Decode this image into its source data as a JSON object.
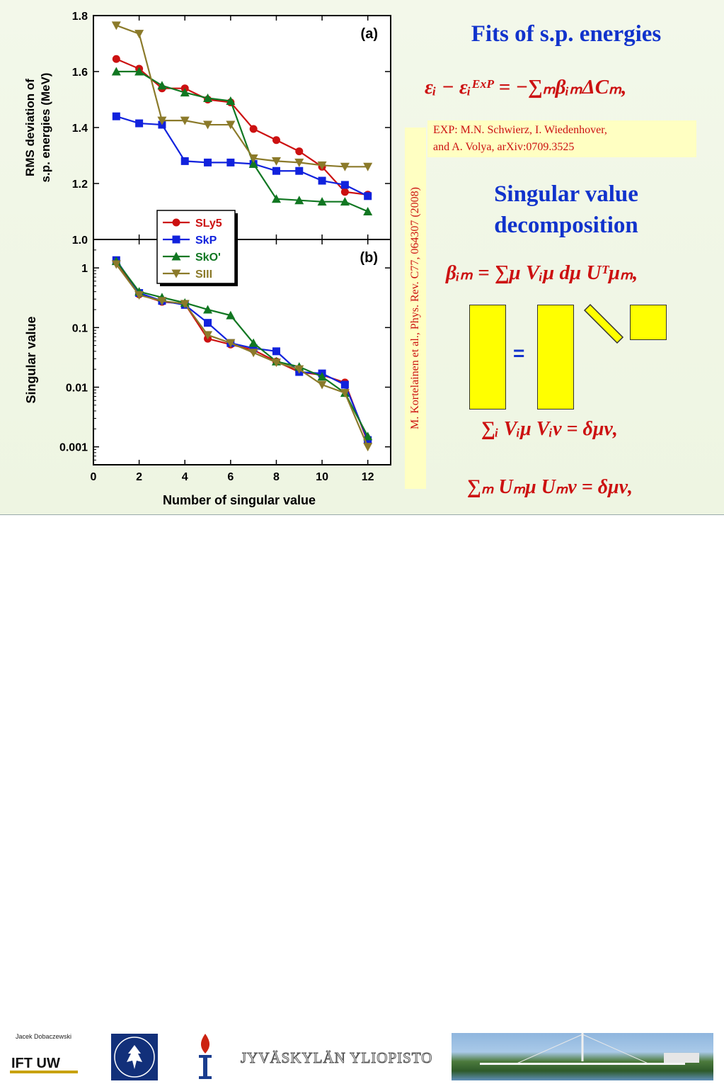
{
  "slide": {
    "fits_title": "Fits of s.p. energies",
    "eq1": "εᵢ − εᵢᴱˣᴾ = −∑ₘβᵢₘΔCₘ,",
    "exp_note_line1": "EXP: M.N. Schwierz, I. Wiedenhover,",
    "exp_note_line2": "and A. Volya, arXiv:0709.3525",
    "svd_title_line1": "Singular value",
    "svd_title_line2": "decomposition",
    "eq2": "βᵢₘ = ∑μ Vᵢμ dμ Uᵀμₘ,",
    "equals_sign": "=",
    "eq3": "∑ᵢ Vᵢμ Vᵢν = δμν,",
    "eq4": "∑ₘ Uₘμ Uₘν = δμν,",
    "reference": "M. Kortelainen et al., Phys. Rev. C77, 064307 (2008)",
    "accent_red": "#cc1111",
    "accent_blue": "#1133cc",
    "box_yellow": "#ffff00"
  },
  "footer": {
    "author": "Jacek Dobaczewski",
    "ift_logo_text": "IFT UW",
    "university_name": "JYVÄSKYLÄN YLIOPISTO",
    "crest_icon": "warsaw-university-crest-icon",
    "torch_icon": "jyvaskyla-torch-icon"
  },
  "chart_data": [
    {
      "type": "line",
      "panel_label": "(a)",
      "ylabel": "RMS deviation of s.p. energies (MeV)",
      "ylim": [
        1.0,
        1.8
      ],
      "yticks": [
        "1.0",
        "1.2",
        "1.4",
        "1.6",
        "1.8"
      ],
      "xlim": [
        0,
        13
      ],
      "x": [
        1,
        2,
        3,
        4,
        5,
        6,
        7,
        8,
        9,
        10,
        11,
        12
      ],
      "series": [
        {
          "name": "SLy5",
          "color": "#cc1111",
          "marker": "circle",
          "values": [
            1.645,
            1.61,
            1.54,
            1.54,
            1.5,
            1.49,
            1.395,
            1.355,
            1.315,
            1.26,
            1.17,
            1.16
          ]
        },
        {
          "name": "SkP",
          "color": "#1122dd",
          "marker": "square",
          "values": [
            1.44,
            1.415,
            1.41,
            1.28,
            1.275,
            1.275,
            1.27,
            1.245,
            1.245,
            1.21,
            1.195,
            1.155
          ]
        },
        {
          "name": "SkO'",
          "color": "#117722",
          "marker": "triangle-up",
          "values": [
            1.6,
            1.6,
            1.55,
            1.525,
            1.505,
            1.495,
            1.27,
            1.145,
            1.14,
            1.135,
            1.135,
            1.1
          ]
        },
        {
          "name": "SIII",
          "color": "#8b7a2a",
          "marker": "triangle-down",
          "values": [
            1.765,
            1.735,
            1.425,
            1.425,
            1.41,
            1.41,
            1.29,
            1.28,
            1.275,
            1.265,
            1.26,
            1.26
          ]
        }
      ],
      "legend_placement": "bottom-center"
    },
    {
      "type": "line",
      "panel_label": "(b)",
      "ylabel": "Singular value",
      "xlabel": "Number of singular value",
      "yscale": "log",
      "ylim": [
        0.0005,
        3
      ],
      "yticks": [
        "0.001",
        "0.01",
        "0.1",
        "1"
      ],
      "xticks": [
        "0",
        "2",
        "4",
        "6",
        "8",
        "10",
        "12"
      ],
      "xlim": [
        0,
        13
      ],
      "x": [
        1,
        2,
        3,
        4,
        5,
        6,
        7,
        8,
        9,
        10,
        11,
        12
      ],
      "series": [
        {
          "name": "SLy5",
          "color": "#cc1111",
          "marker": "circle",
          "values": [
            1.3,
            0.36,
            0.27,
            0.25,
            0.065,
            0.052,
            0.042,
            0.027,
            0.018,
            0.016,
            0.012,
            0.0012
          ]
        },
        {
          "name": "SkP",
          "color": "#1122dd",
          "marker": "square",
          "values": [
            1.35,
            0.38,
            0.28,
            0.24,
            0.12,
            0.055,
            0.045,
            0.04,
            0.018,
            0.017,
            0.011,
            0.0013
          ]
        },
        {
          "name": "SkO'",
          "color": "#117722",
          "marker": "triangle-up",
          "values": [
            1.3,
            0.4,
            0.32,
            0.26,
            0.2,
            0.16,
            0.055,
            0.027,
            0.022,
            0.015,
            0.008,
            0.0015
          ]
        },
        {
          "name": "SIII",
          "color": "#8b7a2a",
          "marker": "triangle-down",
          "values": [
            1.15,
            0.35,
            0.28,
            0.25,
            0.075,
            0.055,
            0.038,
            0.026,
            0.02,
            0.011,
            0.008,
            0.001
          ]
        }
      ]
    }
  ]
}
